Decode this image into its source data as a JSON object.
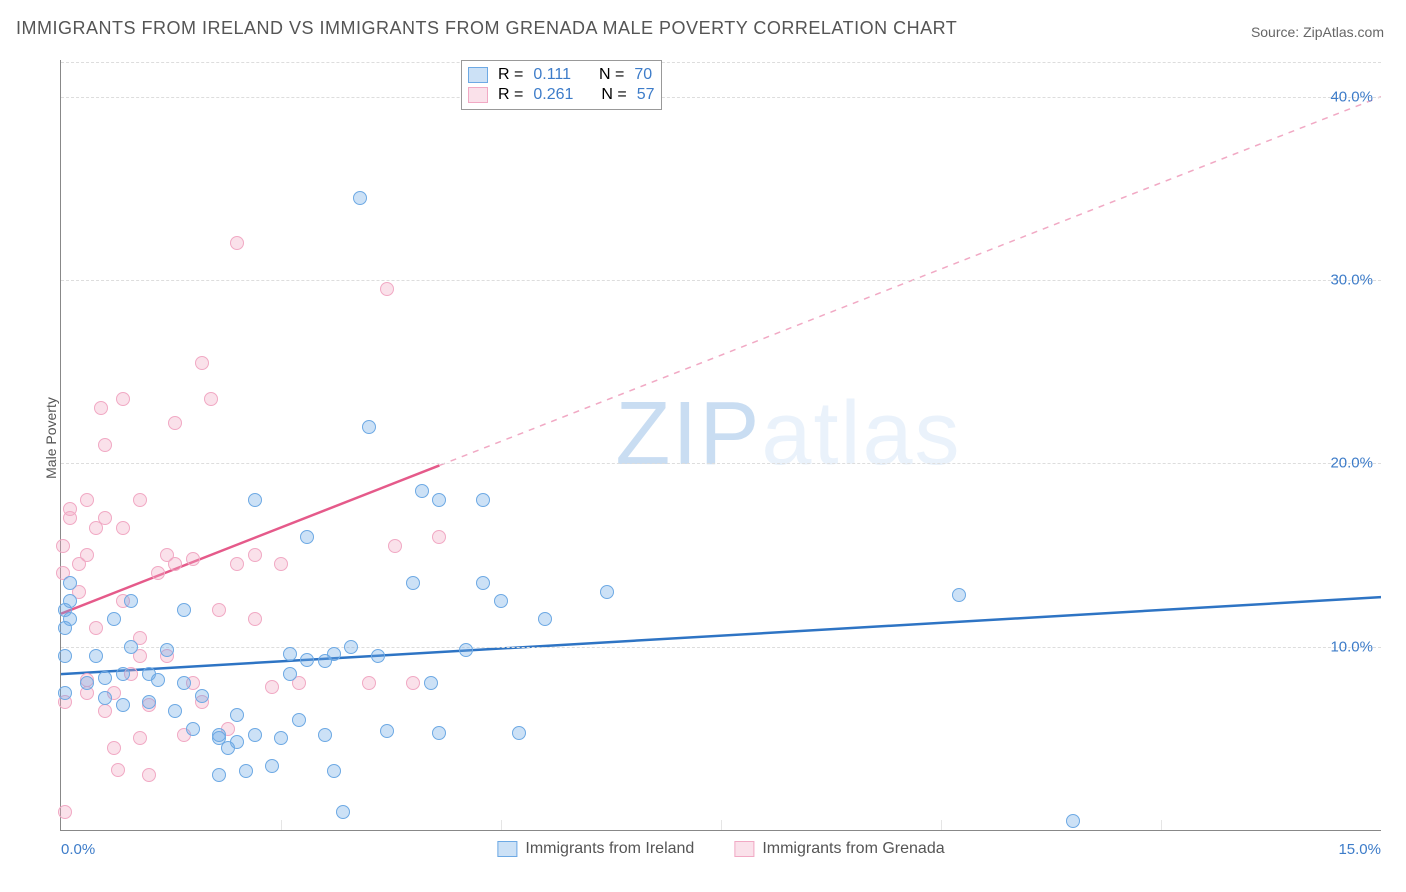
{
  "title": "IMMIGRANTS FROM IRELAND VS IMMIGRANTS FROM GRENADA MALE POVERTY CORRELATION CHART",
  "source": "Source: ZipAtlas.com",
  "y_axis_label": "Male Poverty",
  "watermark": "ZIPatlas",
  "chart": {
    "type": "scatter",
    "xlim": [
      0,
      15
    ],
    "ylim": [
      0,
      42
    ],
    "x_ticks": [
      0,
      15
    ],
    "x_tick_labels": [
      "0.0%",
      "15.0%"
    ],
    "x_minor_ticks": [
      2.5,
      5,
      7.5,
      10,
      12.5
    ],
    "y_grid": [
      10,
      20,
      30,
      40
    ],
    "y_tick_labels": [
      "10.0%",
      "20.0%",
      "30.0%",
      "40.0%"
    ],
    "background_color": "#ffffff",
    "grid_color": "#dddddd",
    "axis_color": "#888888",
    "tick_color": "#3d7cc9"
  },
  "series": {
    "ireland": {
      "label": "Immigrants from Ireland",
      "color_fill": "rgba(109,169,228,0.35)",
      "color_stroke": "#6da9e4",
      "line_color": "#2e74c4",
      "line_width": 2.5,
      "R": "0.111",
      "N": "70",
      "trend": {
        "x1": 0,
        "y1": 8.5,
        "x2": 15,
        "y2": 12.7,
        "solid_to_x": 15
      },
      "points": [
        [
          0.05,
          7.5
        ],
        [
          0.05,
          9.5
        ],
        [
          0.05,
          11.0
        ],
        [
          0.05,
          12.0
        ],
        [
          0.1,
          12.5
        ],
        [
          0.1,
          13.5
        ],
        [
          0.1,
          11.5
        ],
        [
          0.3,
          8.0
        ],
        [
          0.4,
          9.5
        ],
        [
          0.5,
          7.2
        ],
        [
          0.5,
          8.3
        ],
        [
          0.6,
          11.5
        ],
        [
          0.7,
          6.8
        ],
        [
          0.7,
          8.5
        ],
        [
          0.8,
          10.0
        ],
        [
          0.8,
          12.5
        ],
        [
          1.0,
          7.0
        ],
        [
          1.0,
          8.5
        ],
        [
          1.1,
          8.2
        ],
        [
          1.2,
          9.8
        ],
        [
          1.3,
          6.5
        ],
        [
          1.4,
          8.0
        ],
        [
          1.4,
          12.0
        ],
        [
          1.5,
          5.5
        ],
        [
          1.6,
          7.3
        ],
        [
          1.8,
          3.0
        ],
        [
          1.8,
          5.0
        ],
        [
          1.8,
          5.2
        ],
        [
          1.9,
          4.5
        ],
        [
          2.0,
          4.8
        ],
        [
          2.0,
          6.3
        ],
        [
          2.1,
          3.2
        ],
        [
          2.2,
          5.2
        ],
        [
          2.2,
          18.0
        ],
        [
          2.4,
          3.5
        ],
        [
          2.5,
          5.0
        ],
        [
          2.6,
          8.5
        ],
        [
          2.6,
          9.6
        ],
        [
          2.7,
          6.0
        ],
        [
          2.8,
          9.3
        ],
        [
          2.8,
          16.0
        ],
        [
          3.0,
          5.2
        ],
        [
          3.0,
          9.2
        ],
        [
          3.1,
          9.6
        ],
        [
          3.1,
          3.2
        ],
        [
          3.2,
          1.0
        ],
        [
          3.3,
          10.0
        ],
        [
          3.4,
          34.5
        ],
        [
          3.5,
          22.0
        ],
        [
          3.6,
          9.5
        ],
        [
          3.7,
          5.4
        ],
        [
          4.0,
          13.5
        ],
        [
          4.1,
          18.5
        ],
        [
          4.2,
          8.0
        ],
        [
          4.3,
          18.0
        ],
        [
          4.3,
          5.3
        ],
        [
          4.6,
          9.8
        ],
        [
          4.8,
          13.5
        ],
        [
          4.8,
          18.0
        ],
        [
          5.0,
          12.5
        ],
        [
          5.2,
          5.3
        ],
        [
          5.5,
          11.5
        ],
        [
          6.2,
          13.0
        ],
        [
          10.2,
          12.8
        ],
        [
          11.5,
          0.5
        ]
      ]
    },
    "grenada": {
      "label": "Immigrants from Grenada",
      "color_fill": "rgba(241,169,196,0.35)",
      "color_stroke": "#f1a9c4",
      "line_color": "#e55a8a",
      "line_width": 2.5,
      "R": "0.261",
      "N": "57",
      "trend": {
        "x1": 0,
        "y1": 11.8,
        "x2": 15,
        "y2": 40.0,
        "solid_to_x": 4.3
      },
      "points": [
        [
          0.02,
          14.0
        ],
        [
          0.02,
          15.5
        ],
        [
          0.05,
          1.0
        ],
        [
          0.05,
          7.0
        ],
        [
          0.1,
          17.5
        ],
        [
          0.1,
          17.0
        ],
        [
          0.2,
          13.0
        ],
        [
          0.2,
          14.5
        ],
        [
          0.3,
          18.0
        ],
        [
          0.3,
          15.0
        ],
        [
          0.3,
          7.5
        ],
        [
          0.3,
          8.2
        ],
        [
          0.4,
          16.5
        ],
        [
          0.4,
          11.0
        ],
        [
          0.45,
          23.0
        ],
        [
          0.5,
          6.5
        ],
        [
          0.5,
          17.0
        ],
        [
          0.5,
          21.0
        ],
        [
          0.6,
          7.5
        ],
        [
          0.6,
          4.5
        ],
        [
          0.65,
          3.3
        ],
        [
          0.7,
          12.5
        ],
        [
          0.7,
          16.5
        ],
        [
          0.7,
          23.5
        ],
        [
          0.8,
          8.5
        ],
        [
          0.9,
          5.0
        ],
        [
          0.9,
          9.5
        ],
        [
          0.9,
          10.5
        ],
        [
          0.9,
          18.0
        ],
        [
          1.0,
          3.0
        ],
        [
          1.0,
          6.8
        ],
        [
          1.1,
          14.0
        ],
        [
          1.2,
          15.0
        ],
        [
          1.2,
          9.5
        ],
        [
          1.3,
          14.5
        ],
        [
          1.3,
          22.2
        ],
        [
          1.4,
          5.2
        ],
        [
          1.5,
          8.0
        ],
        [
          1.5,
          14.8
        ],
        [
          1.6,
          7.0
        ],
        [
          1.6,
          25.5
        ],
        [
          1.7,
          23.5
        ],
        [
          1.8,
          12.0
        ],
        [
          1.9,
          5.5
        ],
        [
          2.0,
          32.0
        ],
        [
          2.0,
          14.5
        ],
        [
          2.2,
          15.0
        ],
        [
          2.2,
          11.5
        ],
        [
          2.4,
          7.8
        ],
        [
          2.5,
          14.5
        ],
        [
          2.7,
          8.0
        ],
        [
          3.5,
          8.0
        ],
        [
          3.7,
          29.5
        ],
        [
          3.8,
          15.5
        ],
        [
          4.0,
          8.0
        ],
        [
          4.3,
          16.0
        ]
      ]
    }
  },
  "stats_labels": {
    "R_label": "R  =",
    "N_label": "N  ="
  },
  "value_color": "#3d7cc9",
  "label_color": "#555555"
}
